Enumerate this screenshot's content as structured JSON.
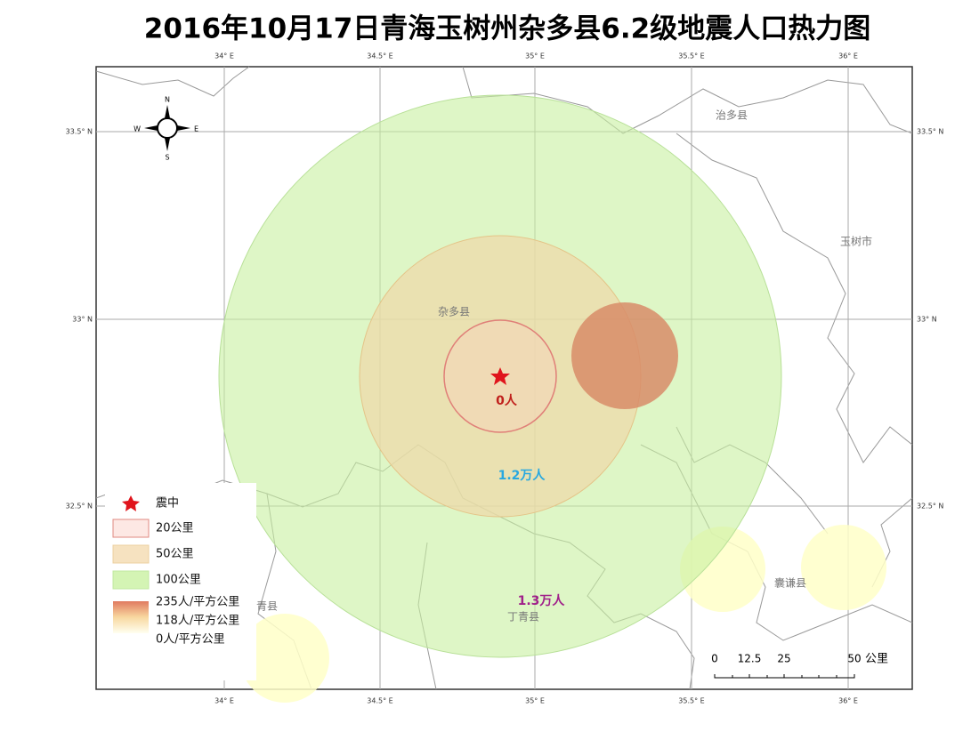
{
  "title": "2016年10月17日青海玉树州杂多县6.2级地震人口热力图",
  "graticule": {
    "longitudes": [
      "34° E",
      "34.5° E",
      "35° E",
      "35.5° E",
      "36° E"
    ],
    "latitudes": [
      "33.5° N",
      "33° N",
      "32.5° N"
    ]
  },
  "places": [
    "治多县",
    "玉树市",
    "杂多县",
    "囊谦县",
    "丁青县",
    "青县"
  ],
  "ring_labels": [
    "0人",
    "1.2万人",
    "1.3万人"
  ],
  "legend": {
    "items": [
      "震中",
      "20公里",
      "50公里",
      "100公里"
    ],
    "gradient": [
      "235人/平方公里",
      "118人/平方公里",
      "0人/平方公里"
    ]
  },
  "scale_bar": {
    "ticks": [
      "0",
      "12.5",
      "25",
      "50"
    ],
    "unit": "公里"
  },
  "compass": {
    "n": "N",
    "s": "S",
    "e": "E",
    "w": "W"
  }
}
